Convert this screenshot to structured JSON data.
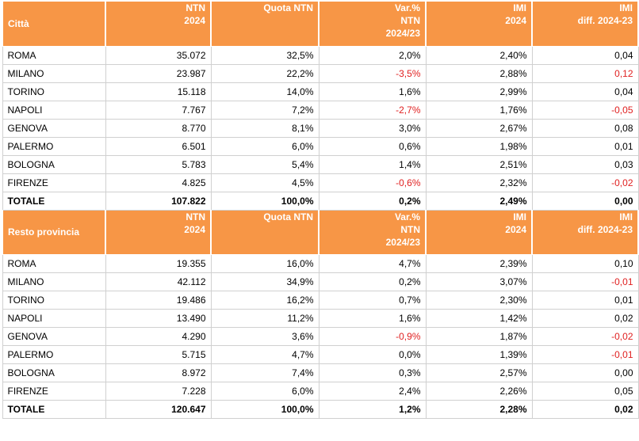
{
  "headers": [
    {
      "lines": [
        "NTN",
        "2024"
      ]
    },
    {
      "lines": [
        "Quota NTN"
      ]
    },
    {
      "lines": [
        "Var.%",
        "NTN",
        "2024/23"
      ]
    },
    {
      "lines": [
        "IMI",
        "2024"
      ]
    },
    {
      "lines": [
        "IMI",
        "diff. 2024-23"
      ]
    }
  ],
  "sections": [
    {
      "title": "Città",
      "rows": [
        {
          "city": "ROMA",
          "ntn": "35.072",
          "quota": "32,5%",
          "var": "2,0%",
          "imi": "2,40%",
          "diff": "0,04"
        },
        {
          "city": "MILANO",
          "ntn": "23.987",
          "quota": "22,2%",
          "var": "-3,5%",
          "imi": "2,88%",
          "diff": "0,12"
        },
        {
          "city": "TORINO",
          "ntn": "15.118",
          "quota": "14,0%",
          "var": "1,6%",
          "imi": "2,99%",
          "diff": "0,04"
        },
        {
          "city": "NAPOLI",
          "ntn": "7.767",
          "quota": "7,2%",
          "var": "-2,7%",
          "imi": "1,76%",
          "diff": "-0,05"
        },
        {
          "city": "GENOVA",
          "ntn": "8.770",
          "quota": "8,1%",
          "var": "3,0%",
          "imi": "2,67%",
          "diff": "0,08"
        },
        {
          "city": "PALERMO",
          "ntn": "6.501",
          "quota": "6,0%",
          "var": "0,6%",
          "imi": "1,98%",
          "diff": "0,01"
        },
        {
          "city": "BOLOGNA",
          "ntn": "5.783",
          "quota": "5,4%",
          "var": "1,4%",
          "imi": "2,51%",
          "diff": "0,03"
        },
        {
          "city": "FIRENZE",
          "ntn": "4.825",
          "quota": "4,5%",
          "var": "-0,6%",
          "imi": "2,32%",
          "diff": "-0,02"
        }
      ],
      "total": {
        "city": "TOTALE",
        "ntn": "107.822",
        "quota": "100,0%",
        "var": "0,2%",
        "imi": "2,49%",
        "diff": "0,00"
      }
    },
    {
      "title": "Resto provincia",
      "rows": [
        {
          "city": "ROMA",
          "ntn": "19.355",
          "quota": "16,0%",
          "var": "4,7%",
          "imi": "2,39%",
          "diff": "0,10"
        },
        {
          "city": "MILANO",
          "ntn": "42.112",
          "quota": "34,9%",
          "var": "0,2%",
          "imi": "3,07%",
          "diff": "-0,01"
        },
        {
          "city": "TORINO",
          "ntn": "19.486",
          "quota": "16,2%",
          "var": "0,7%",
          "imi": "2,30%",
          "diff": "0,01"
        },
        {
          "city": "NAPOLI",
          "ntn": "13.490",
          "quota": "11,2%",
          "var": "1,6%",
          "imi": "1,42%",
          "diff": "0,02"
        },
        {
          "city": "GENOVA",
          "ntn": "4.290",
          "quota": "3,6%",
          "var": "-0,9%",
          "imi": "1,87%",
          "diff": "-0,02"
        },
        {
          "city": "PALERMO",
          "ntn": "5.715",
          "quota": "4,7%",
          "var": "0,0%",
          "imi": "1,39%",
          "diff": "-0,01"
        },
        {
          "city": "BOLOGNA",
          "ntn": "8.972",
          "quota": "7,4%",
          "var": "0,3%",
          "imi": "2,57%",
          "diff": "0,00"
        },
        {
          "city": "FIRENZE",
          "ntn": "7.228",
          "quota": "6,0%",
          "var": "2,4%",
          "imi": "2,26%",
          "diff": "0,05"
        }
      ],
      "total": {
        "city": "TOTALE",
        "ntn": "120.647",
        "quota": "100,0%",
        "var": "1,2%",
        "imi": "2,28%",
        "diff": "0,02"
      }
    }
  ],
  "highlights": [
    {
      "section": 0,
      "row": 1,
      "fields": [
        "var",
        "diff"
      ]
    },
    {
      "section": 0,
      "row": 3,
      "fields": [
        "var",
        "diff"
      ]
    },
    {
      "section": 0,
      "row": 7,
      "fields": [
        "var",
        "diff"
      ]
    },
    {
      "section": 1,
      "row": 1,
      "fields": [
        "diff"
      ]
    },
    {
      "section": 1,
      "row": 4,
      "fields": [
        "var",
        "diff"
      ]
    },
    {
      "section": 1,
      "row": 5,
      "fields": [
        "diff"
      ]
    }
  ],
  "colors": {
    "header_bg": "#F79646",
    "header_text": "#FFFFFF",
    "negative": "#E02020"
  }
}
